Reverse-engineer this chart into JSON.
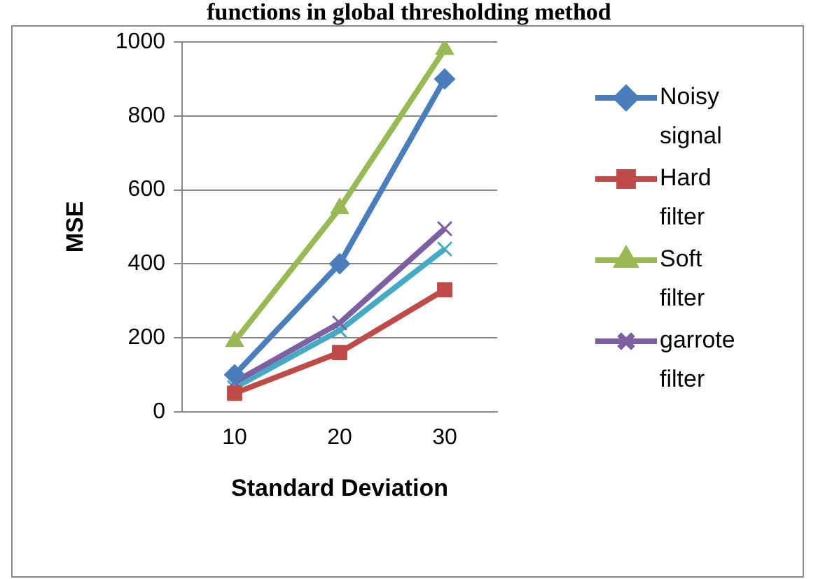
{
  "chart_data": {
    "type": "line",
    "title": "functions in global thresholding method",
    "xlabel": "Standard Deviation",
    "ylabel": "MSE",
    "categories": [
      "10",
      "20",
      "30"
    ],
    "series": [
      {
        "name": "Noisy signal",
        "color": "#4a7ebb",
        "marker": "diamond",
        "values": [
          100,
          400,
          900
        ]
      },
      {
        "name": "Hard filter",
        "color": "#be4b48",
        "marker": "square",
        "values": [
          50,
          160,
          330
        ]
      },
      {
        "name": "Soft filter",
        "color": "#98b954",
        "marker": "triangle",
        "values": [
          190,
          550,
          980
        ]
      },
      {
        "name": "garrote filter",
        "color": "#7d60a0",
        "marker": "cross",
        "values": [
          80,
          240,
          495
        ]
      },
      {
        "color": "#46aac5",
        "marker": "cross",
        "values": [
          65,
          220,
          440
        ]
      }
    ],
    "ylim": [
      0,
      1000
    ],
    "yticks": [
      0,
      200,
      400,
      600,
      800,
      1000
    ],
    "grid": "y",
    "legend": "right",
    "line_style": "solid"
  }
}
